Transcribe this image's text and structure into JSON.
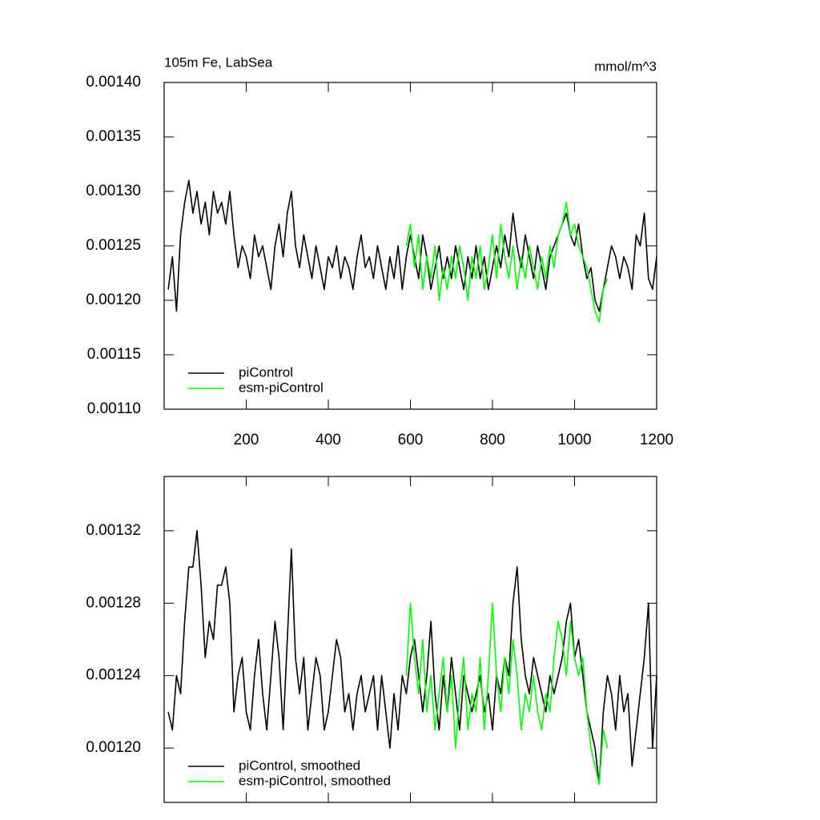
{
  "chart_data": [
    {
      "type": "line",
      "title": "105m Fe, LabSea",
      "units": "mmol/m^3",
      "legend": "lower left",
      "xlim": [
        0,
        1200
      ],
      "xticks": [
        200,
        400,
        600,
        800,
        1000,
        1200
      ],
      "ylim": [
        0.0011,
        0.0014
      ],
      "yticks": [
        {
          "value": 0.0011,
          "label": "0.00110"
        },
        {
          "value": 0.00115,
          "label": "0.00115"
        },
        {
          "value": 0.0012,
          "label": "0.00120"
        },
        {
          "value": 0.00125,
          "label": "0.00125"
        },
        {
          "value": 0.0013,
          "label": "0.00130"
        },
        {
          "value": 0.00135,
          "label": "0.00135"
        },
        {
          "value": 0.0014,
          "label": "0.00140"
        }
      ],
      "x": [
        10,
        20,
        30,
        40,
        50,
        60,
        70,
        80,
        90,
        100,
        110,
        120,
        130,
        140,
        150,
        160,
        170,
        180,
        190,
        200,
        210,
        220,
        230,
        240,
        250,
        260,
        270,
        280,
        290,
        300,
        310,
        320,
        330,
        340,
        350,
        360,
        370,
        380,
        390,
        400,
        410,
        420,
        430,
        440,
        450,
        460,
        470,
        480,
        490,
        500,
        510,
        520,
        530,
        540,
        550,
        560,
        570,
        580,
        590,
        600,
        610,
        620,
        630,
        640,
        650,
        660,
        670,
        680,
        690,
        700,
        710,
        720,
        730,
        740,
        750,
        760,
        770,
        780,
        790,
        800,
        810,
        820,
        830,
        840,
        850,
        860,
        870,
        880,
        890,
        900,
        910,
        920,
        930,
        940,
        950,
        960,
        970,
        980,
        990,
        1000,
        1010,
        1020,
        1030,
        1040,
        1050,
        1060,
        1070,
        1080,
        1090,
        1100,
        1110,
        1120,
        1130,
        1140,
        1150,
        1160,
        1170,
        1180,
        1190,
        1200
      ],
      "series": [
        {
          "name": "piControl",
          "color": "#000000",
          "values": [
            0.00121,
            0.00124,
            0.00119,
            0.00126,
            0.00129,
            0.00131,
            0.00128,
            0.0013,
            0.00127,
            0.00129,
            0.00126,
            0.0013,
            0.00128,
            0.00129,
            0.00127,
            0.0013,
            0.00126,
            0.00123,
            0.00125,
            0.00124,
            0.00122,
            0.00126,
            0.00124,
            0.00125,
            0.00123,
            0.00121,
            0.00125,
            0.00127,
            0.00124,
            0.00128,
            0.0013,
            0.00125,
            0.00123,
            0.00126,
            0.00124,
            0.00122,
            0.00125,
            0.00123,
            0.00121,
            0.00124,
            0.00123,
            0.00125,
            0.00122,
            0.00124,
            0.00123,
            0.00121,
            0.00124,
            0.00126,
            0.00123,
            0.00124,
            0.00122,
            0.00125,
            0.00123,
            0.00121,
            0.00124,
            0.00122,
            0.00125,
            0.00121,
            0.00124,
            0.00126,
            0.00124,
            0.00122,
            0.00126,
            0.00124,
            0.00121,
            0.00123,
            0.00125,
            0.00122,
            0.00124,
            0.00122,
            0.00125,
            0.00123,
            0.00121,
            0.00124,
            0.00122,
            0.00125,
            0.00122,
            0.00124,
            0.00121,
            0.00123,
            0.00125,
            0.00123,
            0.00126,
            0.00124,
            0.00128,
            0.00125,
            0.00123,
            0.00126,
            0.00124,
            0.00122,
            0.00125,
            0.00123,
            0.00121,
            0.00124,
            0.00125,
            0.00126,
            0.00127,
            0.00128,
            0.00126,
            0.00125,
            0.00127,
            0.00124,
            0.00122,
            0.00123,
            0.0012,
            0.00119,
            0.00121,
            0.00123,
            0.00125,
            0.00124,
            0.00122,
            0.00124,
            0.00123,
            0.00121,
            0.00126,
            0.00125,
            0.00128,
            0.00122,
            0.00121,
            0.00124
          ]
        },
        {
          "name": "esm-piControl",
          "color": "#00ff00",
          "values": [
            null,
            null,
            null,
            null,
            null,
            null,
            null,
            null,
            null,
            null,
            null,
            null,
            null,
            null,
            null,
            null,
            null,
            null,
            null,
            null,
            null,
            null,
            null,
            null,
            null,
            null,
            null,
            null,
            null,
            null,
            null,
            null,
            null,
            null,
            null,
            null,
            null,
            null,
            null,
            null,
            null,
            null,
            null,
            null,
            null,
            null,
            null,
            null,
            null,
            null,
            null,
            null,
            null,
            null,
            null,
            null,
            null,
            null,
            0.00125,
            0.00127,
            0.00123,
            0.00126,
            0.00121,
            0.00124,
            0.00122,
            0.00125,
            0.0012,
            0.00123,
            0.00121,
            0.00124,
            0.00122,
            0.00125,
            0.00123,
            0.0012,
            0.00124,
            0.00122,
            0.00125,
            0.00121,
            0.00123,
            0.00126,
            0.00122,
            0.00127,
            0.00124,
            0.00122,
            0.00125,
            0.00121,
            0.00124,
            0.00122,
            0.00125,
            0.00123,
            0.00121,
            0.00124,
            0.00122,
            0.00125,
            0.00123,
            0.00126,
            0.00127,
            0.00129,
            0.00126,
            0.00127,
            0.00125,
            0.00124,
            0.00123,
            0.00121,
            0.00119,
            0.00118,
            0.00121,
            0.00122,
            null,
            null,
            null,
            null,
            null,
            null,
            null,
            null,
            null,
            null,
            null,
            null
          ]
        }
      ]
    },
    {
      "type": "line",
      "legend": "lower left",
      "xlim": [
        0,
        1200
      ],
      "xticks": [
        200,
        400,
        600,
        800,
        1000,
        1200
      ],
      "xtick_labels": false,
      "ylim": [
        0.00117,
        0.00135
      ],
      "yticks": [
        {
          "value": 0.0012,
          "label": "0.00120"
        },
        {
          "value": 0.00124,
          "label": "0.00124"
        },
        {
          "value": 0.00128,
          "label": "0.00128"
        },
        {
          "value": 0.00132,
          "label": "0.00132"
        }
      ],
      "x": [
        10,
        20,
        30,
        40,
        50,
        60,
        70,
        80,
        90,
        100,
        110,
        120,
        130,
        140,
        150,
        160,
        170,
        180,
        190,
        200,
        210,
        220,
        230,
        240,
        250,
        260,
        270,
        280,
        290,
        300,
        310,
        320,
        330,
        340,
        350,
        360,
        370,
        380,
        390,
        400,
        410,
        420,
        430,
        440,
        450,
        460,
        470,
        480,
        490,
        500,
        510,
        520,
        530,
        540,
        550,
        560,
        570,
        580,
        590,
        600,
        610,
        620,
        630,
        640,
        650,
        660,
        670,
        680,
        690,
        700,
        710,
        720,
        730,
        740,
        750,
        760,
        770,
        780,
        790,
        800,
        810,
        820,
        830,
        840,
        850,
        860,
        870,
        880,
        890,
        900,
        910,
        920,
        930,
        940,
        950,
        960,
        970,
        980,
        990,
        1000,
        1010,
        1020,
        1030,
        1040,
        1050,
        1060,
        1070,
        1080,
        1090,
        1100,
        1110,
        1120,
        1130,
        1140,
        1150,
        1160,
        1170,
        1180,
        1190,
        1200
      ],
      "series": [
        {
          "name": "piControl, smoothed",
          "color": "#000000",
          "values": [
            0.00122,
            0.00121,
            0.00124,
            0.00123,
            0.00127,
            0.0013,
            0.0013,
            0.00132,
            0.00129,
            0.00125,
            0.00127,
            0.00126,
            0.00129,
            0.00129,
            0.0013,
            0.00128,
            0.00122,
            0.00124,
            0.00125,
            0.00122,
            0.00121,
            0.00124,
            0.00126,
            0.00123,
            0.00121,
            0.00124,
            0.00127,
            0.00125,
            0.00121,
            0.00126,
            0.00131,
            0.00125,
            0.00123,
            0.00125,
            0.00121,
            0.00123,
            0.00125,
            0.00124,
            0.00121,
            0.00122,
            0.00124,
            0.00126,
            0.00125,
            0.00122,
            0.00123,
            0.00121,
            0.00123,
            0.00124,
            0.00122,
            0.00123,
            0.00124,
            0.00121,
            0.00124,
            0.00122,
            0.0012,
            0.00123,
            0.00121,
            0.00124,
            0.00123,
            0.00125,
            0.00126,
            0.00124,
            0.00122,
            0.00124,
            0.00127,
            0.00123,
            0.00121,
            0.00124,
            0.00122,
            0.00125,
            0.00123,
            0.00121,
            0.00124,
            0.00123,
            0.00122,
            0.00123,
            0.00124,
            0.00122,
            0.00123,
            0.00121,
            0.00124,
            0.00123,
            0.00125,
            0.00124,
            0.00128,
            0.0013,
            0.00126,
            0.00124,
            0.00123,
            0.00125,
            0.00124,
            0.00123,
            0.00122,
            0.00124,
            0.00123,
            0.00124,
            0.00125,
            0.00127,
            0.00128,
            0.00125,
            0.00126,
            0.00124,
            0.00122,
            0.00121,
            0.0012,
            0.00118,
            0.00122,
            0.00124,
            0.00123,
            0.00121,
            0.00124,
            0.00122,
            0.00123,
            0.00119,
            0.00121,
            0.00123,
            0.00125,
            0.00128,
            0.0012,
            0.00124
          ]
        },
        {
          "name": "esm-piControl, smoothed",
          "color": "#00ff00",
          "values": [
            null,
            null,
            null,
            null,
            null,
            null,
            null,
            null,
            null,
            null,
            null,
            null,
            null,
            null,
            null,
            null,
            null,
            null,
            null,
            null,
            null,
            null,
            null,
            null,
            null,
            null,
            null,
            null,
            null,
            null,
            null,
            null,
            null,
            null,
            null,
            null,
            null,
            null,
            null,
            null,
            null,
            null,
            null,
            null,
            null,
            null,
            null,
            null,
            null,
            null,
            null,
            null,
            null,
            null,
            null,
            null,
            null,
            null,
            0.00124,
            0.00128,
            0.00125,
            0.00123,
            0.00126,
            0.00122,
            0.00124,
            0.00121,
            0.00123,
            0.00125,
            0.00122,
            0.00124,
            0.0012,
            0.00123,
            0.00125,
            0.00121,
            0.00123,
            0.00122,
            0.00125,
            0.00121,
            0.00124,
            0.00128,
            0.00124,
            0.00122,
            0.00125,
            0.00123,
            0.00126,
            0.00124,
            0.00121,
            0.00123,
            0.00122,
            0.00124,
            0.00122,
            0.00121,
            0.00123,
            0.00122,
            0.00125,
            0.00127,
            0.00126,
            0.00124,
            0.00127,
            0.00125,
            0.00124,
            0.00125,
            0.00122,
            0.0012,
            0.00119,
            0.00118,
            0.00121,
            0.0012,
            null,
            null,
            null,
            null,
            null,
            null,
            null,
            null,
            null,
            null,
            null,
            null
          ]
        }
      ]
    }
  ]
}
